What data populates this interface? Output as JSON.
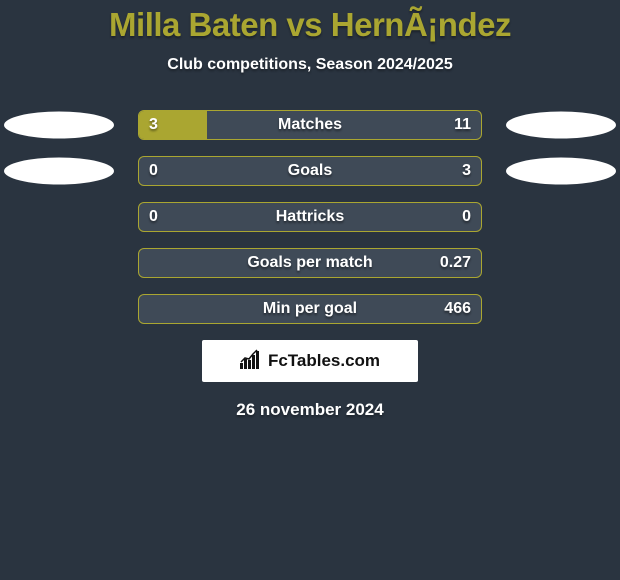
{
  "background_color": "#2a3440",
  "title": {
    "text": "Milla Baten vs HernÃ¡ndez",
    "fontsize": 33,
    "color": "#aaa631"
  },
  "subtitle": {
    "text": "Club competitions, Season 2024/2025",
    "fontsize": 16,
    "color": "#ffffff"
  },
  "bars": {
    "track_color": "#3f4a57",
    "border": "1px solid #aaa631",
    "left_fill_color": "#aaa631",
    "right_fill_color": "#aaa631",
    "value_fontsize": 16,
    "label_fontsize": 16,
    "value_color": "#ffffff",
    "label_color": "#ffffff"
  },
  "oval": {
    "color": "#ffffff",
    "width": 110,
    "height": 27
  },
  "rows": [
    {
      "label": "Matches",
      "left_value": "3",
      "right_value": "11",
      "left_pct": 20,
      "right_pct": 0,
      "show_left_oval": true,
      "show_right_oval": true
    },
    {
      "label": "Goals",
      "left_value": "0",
      "right_value": "3",
      "left_pct": 0,
      "right_pct": 0,
      "show_left_oval": true,
      "show_right_oval": true
    },
    {
      "label": "Hattricks",
      "left_value": "0",
      "right_value": "0",
      "left_pct": 0,
      "right_pct": 0,
      "show_left_oval": false,
      "show_right_oval": false
    },
    {
      "label": "Goals per match",
      "left_value": "",
      "right_value": "0.27",
      "left_pct": 0,
      "right_pct": 0,
      "show_left_oval": false,
      "show_right_oval": false
    },
    {
      "label": "Min per goal",
      "left_value": "",
      "right_value": "466",
      "left_pct": 0,
      "right_pct": 0,
      "show_left_oval": false,
      "show_right_oval": false
    }
  ],
  "brand": {
    "icon_name": "bar-chart-icon",
    "text": "FcTables.com",
    "box_bg": "#ffffff",
    "text_color": "#111111",
    "fontsize": 17
  },
  "date": {
    "text": "26 november 2024",
    "fontsize": 17,
    "color": "#ffffff"
  }
}
